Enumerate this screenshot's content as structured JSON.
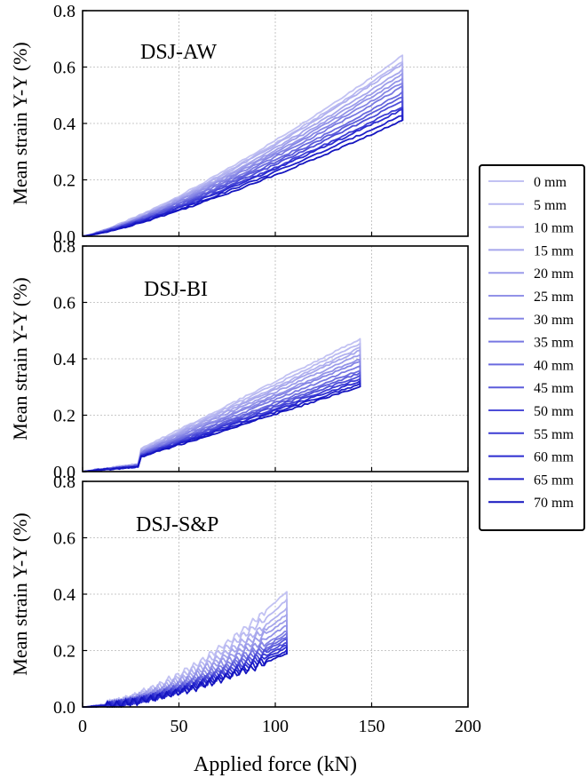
{
  "figure": {
    "xlabel": "Applied force (kN)"
  },
  "chart_data": [
    {
      "type": "line",
      "title": "DSJ-AW",
      "xlabel": "Applied force (kN)",
      "ylabel": "Mean strain Y-Y (%)",
      "xlim": [
        0,
        200
      ],
      "ylim": [
        0,
        0.8
      ],
      "xticks": [
        "0",
        "50",
        "100",
        "150",
        "200"
      ],
      "yticks": [
        "0.0",
        "0.2",
        "0.4",
        "0.6",
        "0.8"
      ],
      "grid": true,
      "x_end": 166,
      "series_end_values": [
        0.64,
        0.62,
        0.61,
        0.59,
        0.575,
        0.56,
        0.545,
        0.53,
        0.51,
        0.495,
        0.48,
        0.46,
        0.45,
        0.43,
        0.41
      ]
    },
    {
      "type": "line",
      "title": "DSJ-BI",
      "xlabel": "Applied force (kN)",
      "ylabel": "Mean strain Y-Y (%)",
      "xlim": [
        0,
        200
      ],
      "ylim": [
        0,
        0.8
      ],
      "xticks": [
        "0",
        "50",
        "100",
        "150",
        "200"
      ],
      "yticks": [
        "0.0",
        "0.2",
        "0.4",
        "0.6",
        "0.8"
      ],
      "grid": true,
      "x_end": 144,
      "series_end_values": [
        0.47,
        0.455,
        0.44,
        0.43,
        0.415,
        0.4,
        0.39,
        0.375,
        0.36,
        0.35,
        0.34,
        0.33,
        0.32,
        0.31,
        0.3
      ]
    },
    {
      "type": "line",
      "title": "DSJ-S&P",
      "xlabel": "Applied force (kN)",
      "ylabel": "Mean strain Y-Y (%)",
      "xlim": [
        0,
        200
      ],
      "ylim": [
        0,
        0.8
      ],
      "xticks": [
        "0",
        "50",
        "100",
        "150",
        "200"
      ],
      "yticks": [
        "0.0",
        "0.2",
        "0.4",
        "0.6",
        "0.8"
      ],
      "grid": true,
      "x_end": 106,
      "series_end_values": [
        0.41,
        0.38,
        0.35,
        0.33,
        0.31,
        0.29,
        0.27,
        0.26,
        0.25,
        0.24,
        0.23,
        0.22,
        0.21,
        0.2,
        0.19
      ]
    }
  ],
  "legend": {
    "position": "right",
    "items": [
      "0 mm",
      "5 mm",
      "10 mm",
      "15 mm",
      "20 mm",
      "25 mm",
      "30 mm",
      "35 mm",
      "40 mm",
      "45 mm",
      "50 mm",
      "55 mm",
      "60 mm",
      "65 mm",
      "70 mm"
    ],
    "colors": [
      "#c2c2f3",
      "#b9b9f1",
      "#b0b0ef",
      "#a6a6ec",
      "#9c9cea",
      "#9292e8",
      "#8585e5",
      "#7878e2",
      "#6a6adf",
      "#5c5cdb",
      "#4d4dd8",
      "#3d3dd4",
      "#2c2cd0",
      "#1f1fc9",
      "#1414bf"
    ]
  }
}
